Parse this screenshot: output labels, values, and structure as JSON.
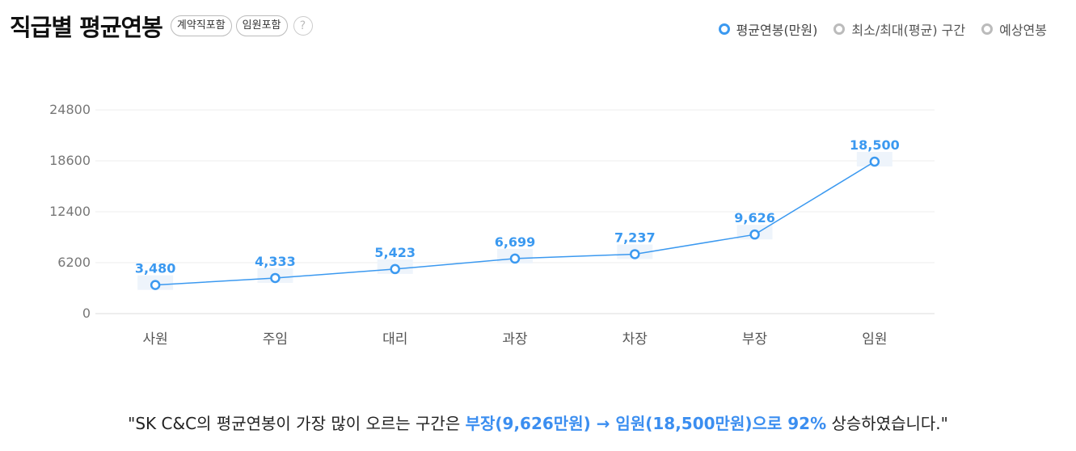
{
  "header": {
    "title": "직급별 평균연봉",
    "chip_contract": "계약직포함",
    "chip_exec": "임원포함",
    "help_glyph": "?"
  },
  "legend": {
    "avg": "평균연봉(만원)",
    "range": "최소/최대(평균) 구간",
    "expected": "예상연봉"
  },
  "colors": {
    "accent": "#3b99f0",
    "grid": "#ececec",
    "axis_text": "#777777"
  },
  "chart_data": {
    "type": "line",
    "categories": [
      "사원",
      "주임",
      "대리",
      "과장",
      "차장",
      "부장",
      "임원"
    ],
    "series": [
      {
        "name": "평균연봉(만원)",
        "values": [
          3480,
          4333,
          5423,
          6699,
          7237,
          9626,
          18500
        ]
      }
    ],
    "data_labels": [
      "3,480",
      "4,333",
      "5,423",
      "6,699",
      "7,237",
      "9,626",
      "18,500"
    ],
    "yticks": [
      0,
      6200,
      12400,
      18600,
      24800
    ],
    "ylim": [
      0,
      24800
    ],
    "grid": true
  },
  "summary": {
    "prefix": "\"SK C&C의 평균연봉이 가장 많이 오르는 구간은 ",
    "highlight": "부장(9,626만원) → 임원(18,500만원)으로 92%",
    "suffix": " 상승하였습니다.\""
  }
}
